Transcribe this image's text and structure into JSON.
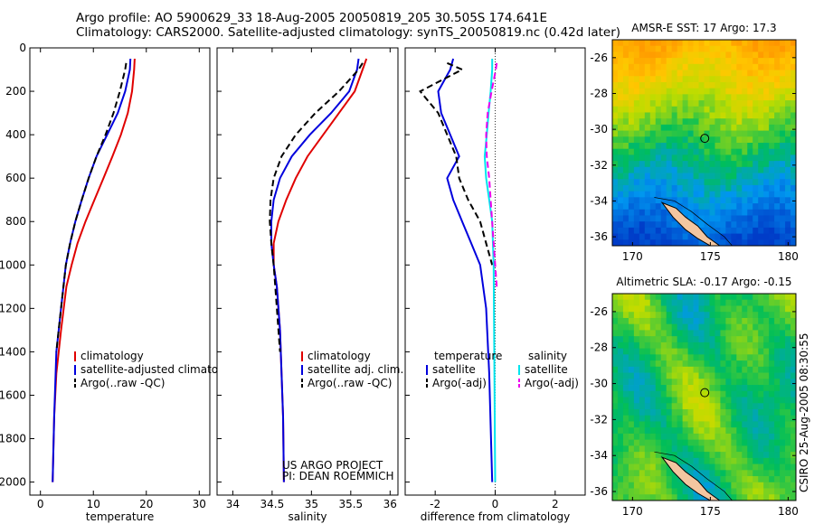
{
  "header": {
    "line1": "Argo profile: AO 5900629_33 18-Aug-2005 20050819_205 30.505S 174.641E",
    "line2": "Climatology: CARS2000. Satellite-adjusted climatology: synTS_20050819.nc (0.42d later)"
  },
  "credit": {
    "line1": "US ARGO PROJECT",
    "line2": "PI: DEAN ROEMMICH"
  },
  "timestamp": "CSIRO 25-Aug-2005 08:30:55",
  "colors": {
    "climatology": "#e00000",
    "satellite": "#0000dd",
    "argo": "#000000",
    "salinity_satellite": "#00e5ee",
    "salinity_argo": "#ee00ee"
  },
  "chart_data": [
    {
      "type": "line",
      "xlabel": "temperature",
      "ylabel": "",
      "xlim": [
        -2,
        32
      ],
      "ylim": [
        2060,
        0
      ],
      "xticks": [
        0,
        10,
        20,
        30
      ],
      "yticks": [
        0,
        200,
        400,
        600,
        800,
        1000,
        1200,
        1400,
        1600,
        1800,
        2000
      ],
      "legend": [
        "climatology",
        "satellite-adjusted climatology",
        "Argo(..raw -QC)"
      ],
      "series": [
        {
          "name": "climatology",
          "x": [
            17.8,
            17.7,
            17.3,
            16.5,
            15.2,
            13.6,
            11.9,
            10.2,
            8.5,
            7.0,
            5.9,
            4.9,
            3.9,
            3.0,
            2.6,
            2.3
          ],
          "y": [
            50,
            100,
            200,
            300,
            400,
            500,
            600,
            700,
            800,
            900,
            1000,
            1100,
            1300,
            1500,
            1700,
            2000
          ]
        },
        {
          "name": "satellite-adjusted climatology",
          "x": [
            17.0,
            16.9,
            16.0,
            14.6,
            12.6,
            10.6,
            9.1,
            7.8,
            6.6,
            5.6,
            4.8,
            3.9,
            3.0,
            2.6,
            2.3
          ],
          "y": [
            50,
            100,
            200,
            300,
            400,
            500,
            600,
            700,
            800,
            900,
            1000,
            1200,
            1400,
            1700,
            2000
          ]
        },
        {
          "name": "Argo(..raw -QC)",
          "x": [
            16.2,
            16.0,
            15.0,
            13.8,
            12.3,
            10.6,
            9.1,
            7.8,
            6.6,
            5.6,
            4.8,
            3.9,
            3.0
          ],
          "y": [
            70,
            100,
            200,
            300,
            400,
            500,
            600,
            700,
            800,
            900,
            1000,
            1200,
            1400
          ]
        }
      ]
    },
    {
      "type": "line",
      "xlabel": "salinity",
      "ylabel": "",
      "xlim": [
        33.8,
        36.1
      ],
      "ylim": [
        2060,
        0
      ],
      "xticks": [
        34,
        34.5,
        35,
        35.5,
        36
      ],
      "yticks": [],
      "legend": [
        "climatology",
        "satellite adj. clim.",
        "Argo(..raw -QC)"
      ],
      "series": [
        {
          "name": "climatology",
          "x": [
            35.7,
            35.65,
            35.55,
            35.35,
            35.15,
            34.95,
            34.8,
            34.68,
            34.58,
            34.52,
            34.52,
            34.56,
            34.6,
            34.62,
            34.64,
            34.65
          ],
          "y": [
            50,
            100,
            200,
            300,
            400,
            500,
            600,
            700,
            800,
            900,
            1000,
            1100,
            1300,
            1500,
            1700,
            2000
          ]
        },
        {
          "name": "satellite adj. clim.",
          "x": [
            35.6,
            35.58,
            35.48,
            35.25,
            34.98,
            34.75,
            34.6,
            34.52,
            34.49,
            34.49,
            34.52,
            34.56,
            34.6,
            34.62,
            34.64,
            34.65
          ],
          "y": [
            50,
            100,
            200,
            300,
            400,
            500,
            600,
            700,
            800,
            900,
            1000,
            1100,
            1300,
            1500,
            1700,
            2000
          ]
        },
        {
          "name": "Argo(..raw -QC)",
          "x": [
            35.65,
            35.6,
            35.35,
            35.05,
            34.8,
            34.62,
            34.52,
            34.48,
            34.47,
            34.49,
            34.52,
            34.56,
            34.6
          ],
          "y": [
            70,
            100,
            200,
            300,
            400,
            500,
            600,
            700,
            800,
            900,
            1000,
            1200,
            1400
          ]
        }
      ]
    },
    {
      "type": "line",
      "xlabel": "difference from climatology",
      "ylabel": "",
      "xlim": [
        -3,
        3
      ],
      "ylim": [
        2060,
        0
      ],
      "xticks": [
        -2,
        0,
        2
      ],
      "yticks": [],
      "legend_groups": [
        "temperature",
        "salinity"
      ],
      "legend": [
        "satellite",
        "Argo(-adj)",
        "satellite",
        "Argo(-adj)"
      ],
      "series": [
        {
          "name": "satellite",
          "group": "temperature",
          "x": [
            -1.4,
            -1.5,
            -1.9,
            -1.8,
            -1.5,
            -1.2,
            -1.6,
            -1.4,
            -1.1,
            -0.8,
            -0.5,
            -0.3,
            -0.2,
            -0.1
          ],
          "y": [
            50,
            100,
            200,
            300,
            400,
            500,
            600,
            700,
            800,
            900,
            1000,
            1200,
            1500,
            2000
          ]
        },
        {
          "name": "Argo(-adj)",
          "group": "temperature",
          "x": [
            -1.6,
            -1.1,
            -2.5,
            -1.9,
            -1.6,
            -1.3,
            -1.2,
            -0.9,
            -0.5,
            -0.3,
            -0.1
          ],
          "y": [
            70,
            100,
            200,
            300,
            400,
            500,
            600,
            700,
            800,
            900,
            1000
          ]
        },
        {
          "name": "satellite",
          "group": "salinity",
          "x": [
            -0.1,
            -0.1,
            -0.15,
            -0.22,
            -0.28,
            -0.35,
            -0.3,
            -0.2,
            -0.1,
            -0.05,
            0.0
          ],
          "y": [
            50,
            100,
            200,
            300,
            400,
            500,
            600,
            700,
            800,
            1000,
            2000
          ]
        },
        {
          "name": "Argo(-adj)",
          "group": "salinity",
          "x": [
            0.05,
            0.02,
            -0.12,
            -0.25,
            -0.3,
            -0.28,
            -0.2,
            -0.15,
            -0.05,
            0.05
          ],
          "y": [
            70,
            100,
            200,
            300,
            400,
            500,
            600,
            700,
            900,
            1100
          ]
        }
      ]
    },
    {
      "type": "heatmap",
      "title": "AMSR-E SST: 17 Argo: 17.3",
      "xlim": [
        168.7,
        180.5
      ],
      "ylim": [
        -36.5,
        -25
      ],
      "xticks": [
        170,
        175,
        180
      ],
      "yticks": [
        -26,
        -28,
        -30,
        -32,
        -34,
        -36
      ],
      "marker": {
        "lon": 174.641,
        "lat": -30.505
      }
    },
    {
      "type": "heatmap",
      "title": "Altimetric SLA: -0.17 Argo: -0.15",
      "xlim": [
        168.7,
        180.5
      ],
      "ylim": [
        -36.5,
        -25
      ],
      "xticks": [
        170,
        175,
        180
      ],
      "yticks": [
        -26,
        -28,
        -30,
        -32,
        -34,
        -36
      ],
      "marker": {
        "lon": 174.641,
        "lat": -30.505
      }
    }
  ]
}
